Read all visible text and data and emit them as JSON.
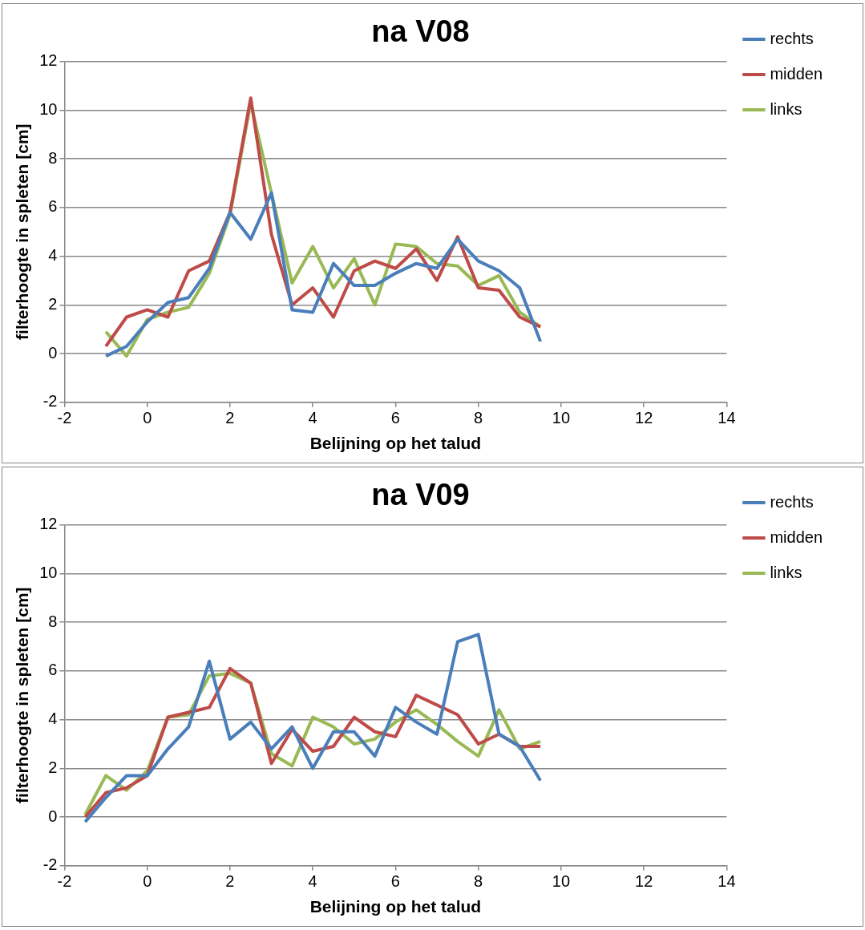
{
  "chart_data": [
    {
      "type": "line",
      "title": "na V08",
      "xlabel": "Belijning op het talud",
      "ylabel": "filterhoogte in spleten [cm]",
      "x": [
        -1,
        -0.5,
        0,
        0.5,
        1,
        1.5,
        2,
        2.5,
        3,
        3.5,
        4,
        4.5,
        5,
        5.5,
        6,
        6.5,
        7,
        7.5,
        8,
        8.5,
        9,
        9.5
      ],
      "series": [
        {
          "name": "rechts",
          "color": "#4a7ebb",
          "values": [
            -0.1,
            0.3,
            1.3,
            2.1,
            2.3,
            3.5,
            5.8,
            4.7,
            6.6,
            1.8,
            1.7,
            3.7,
            2.8,
            2.8,
            3.3,
            3.7,
            3.5,
            4.7,
            3.8,
            3.4,
            2.7,
            0.5
          ]
        },
        {
          "name": "midden",
          "color": "#be4b48",
          "values": [
            0.3,
            1.5,
            1.8,
            1.5,
            3.4,
            3.8,
            5.8,
            10.5,
            4.9,
            2.0,
            2.7,
            1.5,
            3.4,
            3.8,
            3.5,
            4.3,
            3.0,
            4.8,
            2.7,
            2.6,
            1.5,
            1.1
          ]
        },
        {
          "name": "links",
          "color": "#98b954",
          "values": [
            0.9,
            -0.1,
            1.4,
            1.7,
            1.9,
            3.3,
            5.7,
            10.3,
            6.6,
            2.9,
            4.4,
            2.7,
            3.9,
            2.0,
            4.5,
            4.4,
            3.7,
            3.6,
            2.8,
            3.2,
            1.7,
            1.1
          ]
        }
      ],
      "xlim": [
        -2,
        14
      ],
      "xticks": [
        -2,
        0,
        2,
        4,
        6,
        8,
        10,
        12,
        14
      ],
      "ylim": [
        -2,
        12
      ],
      "yticks": [
        -2,
        0,
        2,
        4,
        6,
        8,
        10,
        12
      ],
      "grid": "y",
      "legend": "right",
      "marker": "none",
      "line_style": "solid"
    },
    {
      "type": "line",
      "title": "na V09",
      "xlabel": "Belijning op het talud",
      "ylabel": "filterhoogte in spleten [cm]",
      "x": [
        -1.5,
        -1,
        -0.5,
        0,
        0.5,
        1,
        1.5,
        2,
        2.5,
        3,
        3.5,
        4,
        4.5,
        5,
        5.5,
        6,
        6.5,
        7,
        7.5,
        8,
        8.5,
        9,
        9.5
      ],
      "series": [
        {
          "name": "rechts",
          "color": "#4a7ebb",
          "values": [
            -0.2,
            0.8,
            1.7,
            1.7,
            2.8,
            3.7,
            6.4,
            3.2,
            3.9,
            2.8,
            3.7,
            2.0,
            3.5,
            3.5,
            2.5,
            4.5,
            3.9,
            3.4,
            7.2,
            7.5,
            3.4,
            2.9,
            1.5
          ]
        },
        {
          "name": "midden",
          "color": "#be4b48",
          "values": [
            0,
            1.0,
            1.2,
            1.7,
            4.1,
            4.3,
            4.5,
            6.1,
            5.5,
            2.2,
            3.6,
            2.7,
            2.9,
            4.1,
            3.5,
            3.3,
            5.0,
            4.6,
            4.2,
            3.0,
            3.4,
            2.9,
            2.9
          ]
        },
        {
          "name": "links",
          "color": "#98b954",
          "values": [
            0.1,
            1.7,
            1.1,
            1.9,
            4.1,
            4.2,
            5.8,
            5.9,
            5.5,
            2.6,
            2.1,
            4.1,
            3.7,
            3.0,
            3.2,
            3.9,
            4.4,
            3.8,
            3.1,
            2.5,
            4.4,
            2.8,
            3.1
          ]
        }
      ],
      "xlim": [
        -2,
        14
      ],
      "xticks": [
        -2,
        0,
        2,
        4,
        6,
        8,
        10,
        12,
        14
      ],
      "ylim": [
        -2,
        12
      ],
      "yticks": [
        -2,
        0,
        2,
        4,
        6,
        8,
        10,
        12
      ],
      "grid": "y",
      "legend": "right",
      "marker": "none",
      "line_style": "solid"
    }
  ]
}
